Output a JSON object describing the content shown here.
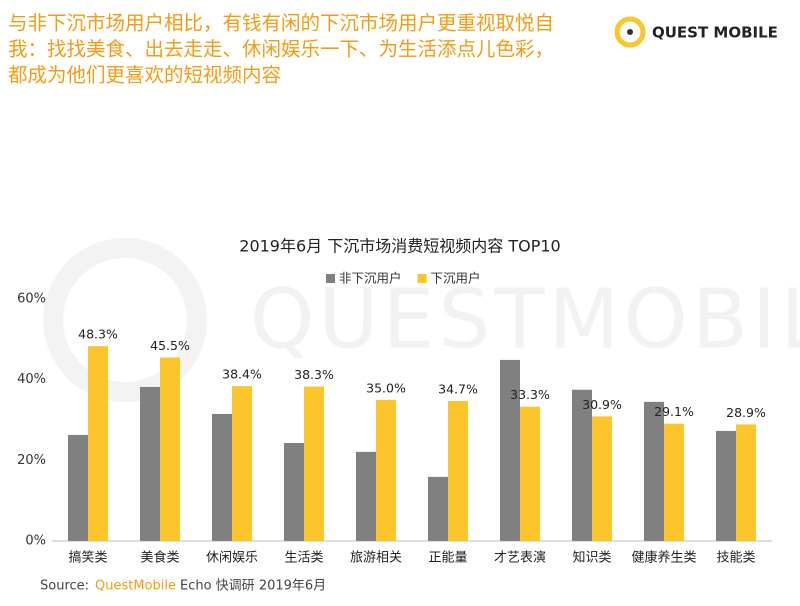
{
  "header": {
    "lines": [
      "与非下沉市场用户相比，有钱有闲的下沉市场用户更重视取悦自",
      "我：找找美食、出去走走、休闲娱乐一下、为生活添点儿色彩，",
      "都成为他们更喜欢的短视频内容"
    ]
  },
  "logo": "QUEST MOBILE",
  "watermark": "QUESTMOBILE",
  "chart_data": {
    "type": "bar",
    "title": "2019年6月  下沉市场消费短视频内容 TOP10",
    "categories": [
      "搞笑类",
      "美食类",
      "休闲娱乐",
      "生活类",
      "旅游相关",
      "正能量",
      "才艺表演",
      "知识类",
      "健康养生类",
      "技能类"
    ],
    "series": [
      {
        "name": "非下沉用户",
        "color": "#808080",
        "values": [
          26.3,
          38.2,
          31.5,
          24.3,
          22.1,
          15.9,
          44.9,
          37.5,
          34.5,
          27.3
        ]
      },
      {
        "name": "下沉用户",
        "color": "#fbc52b",
        "values": [
          48.3,
          45.5,
          38.4,
          38.3,
          35.0,
          34.7,
          33.3,
          30.9,
          29.1,
          28.9
        ],
        "value_labels": [
          "48.3%",
          "45.5%",
          "38.4%",
          "38.3%",
          "35.0%",
          "34.7%",
          "33.3%",
          "30.9%",
          "29.1%",
          "28.9%"
        ]
      }
    ],
    "ylim": [
      0,
      60
    ],
    "yticks": [
      {
        "value": 0,
        "label": "0%"
      },
      {
        "value": 20,
        "label": "20%"
      },
      {
        "value": 40,
        "label": "40%"
      },
      {
        "value": 60,
        "label": "60%"
      }
    ],
    "grid": false,
    "legend": "top"
  },
  "source": {
    "prefix": "Source:",
    "brand": "QuestMobile",
    "rest": "Echo 快调研 2019年6月"
  }
}
